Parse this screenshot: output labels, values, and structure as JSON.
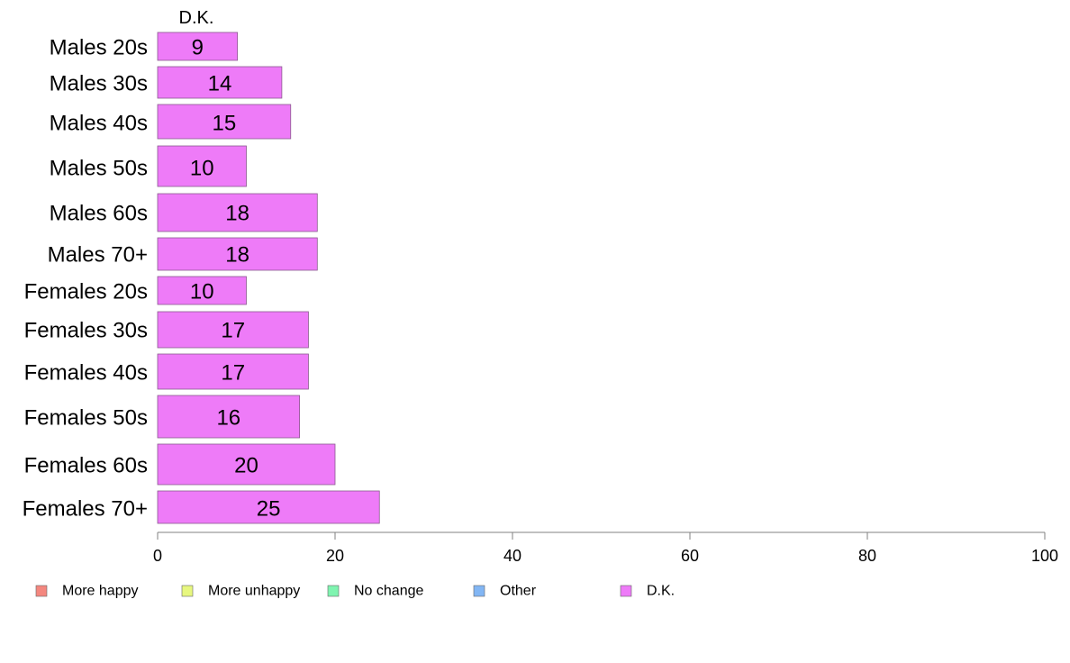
{
  "chart_data": {
    "type": "bar",
    "orientation": "horizontal",
    "stacked": true,
    "categories": [
      "Males 20s",
      "Males 30s",
      "Males 40s",
      "Males 50s",
      "Males 60s",
      "Males 70+",
      "Females 20s",
      "Females 30s",
      "Females 40s",
      "Females 50s",
      "Females 60s",
      "Females 70+"
    ],
    "series": [
      {
        "name": "More happy",
        "color": "#f4877f",
        "values": [
          0,
          0,
          0,
          0,
          0,
          0,
          0,
          0,
          0,
          0,
          0,
          0
        ]
      },
      {
        "name": "More unhappy",
        "color": "#e7f77f",
        "values": [
          0,
          0,
          0,
          0,
          0,
          0,
          0,
          0,
          0,
          0,
          0,
          0
        ]
      },
      {
        "name": "No change",
        "color": "#7ff4b0",
        "values": [
          0,
          0,
          0,
          0,
          0,
          0,
          0,
          0,
          0,
          0,
          0,
          0
        ]
      },
      {
        "name": "Other",
        "color": "#82b6f4",
        "values": [
          0,
          0,
          0,
          0,
          0,
          0,
          0,
          0,
          0,
          0,
          0,
          0
        ]
      },
      {
        "name": "D.K.",
        "color": "#ee7bf8",
        "values": [
          9,
          14,
          15,
          10,
          18,
          18,
          10,
          17,
          17,
          16,
          20,
          25
        ]
      }
    ],
    "data_labels": [
      "9",
      "14",
      "15",
      "10",
      "18",
      "18",
      "10",
      "17",
      "17",
      "16",
      "20",
      "25"
    ],
    "series_heading": "D.K.",
    "xlim": [
      0,
      100
    ],
    "xticks": [
      "0",
      "20",
      "40",
      "60",
      "80",
      "100"
    ],
    "title": "",
    "xlabel": "",
    "ylabel": "",
    "grid": false,
    "legend_position": "bottom"
  }
}
